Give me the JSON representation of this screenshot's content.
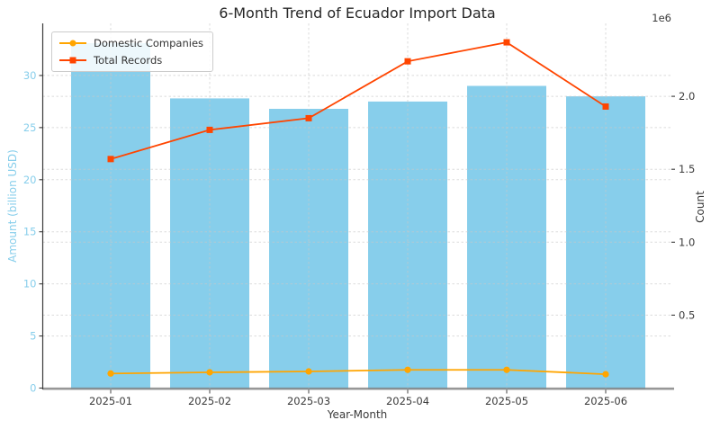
{
  "chart_data": {
    "type": "bar",
    "subtype": "combo-bar-line-dual-axis",
    "title": "6-Month Trend of Ecuador Import Data",
    "xlabel": "Year-Month",
    "categories": [
      "2025-01",
      "2025-02",
      "2025-03",
      "2025-04",
      "2025-05",
      "2025-06"
    ],
    "bars": {
      "axis": "left",
      "color": "#87CEEB",
      "values": [
        33.1,
        27.8,
        26.8,
        27.5,
        29.0,
        28.0
      ]
    },
    "series": [
      {
        "name": "Domestic Companies",
        "type": "line",
        "marker": "circle",
        "axis": "right",
        "color": "#FFA500",
        "values": [
          100000,
          108000,
          114000,
          125000,
          125000,
          95000
        ]
      },
      {
        "name": "Total Records",
        "type": "line",
        "marker": "square",
        "axis": "right",
        "color": "#FF4500",
        "values": [
          1570000,
          1770000,
          1850000,
          2240000,
          2370000,
          1930000
        ]
      }
    ],
    "left_axis": {
      "label": "Amount (billion USD)",
      "ticks": [
        0,
        5,
        10,
        15,
        20,
        25,
        30
      ],
      "range": [
        0,
        35
      ],
      "color": "#87CEEB"
    },
    "right_axis": {
      "label": "Count",
      "ticks": [
        0.5,
        1.0,
        1.5,
        2.0
      ],
      "tick_scale": 1000000,
      "offset_label": "1e6",
      "range": [
        0,
        2500000
      ],
      "color": "#3a3a3a"
    },
    "grid": true,
    "grid_color": "#c8c8c8",
    "legend_position": "upper left"
  }
}
